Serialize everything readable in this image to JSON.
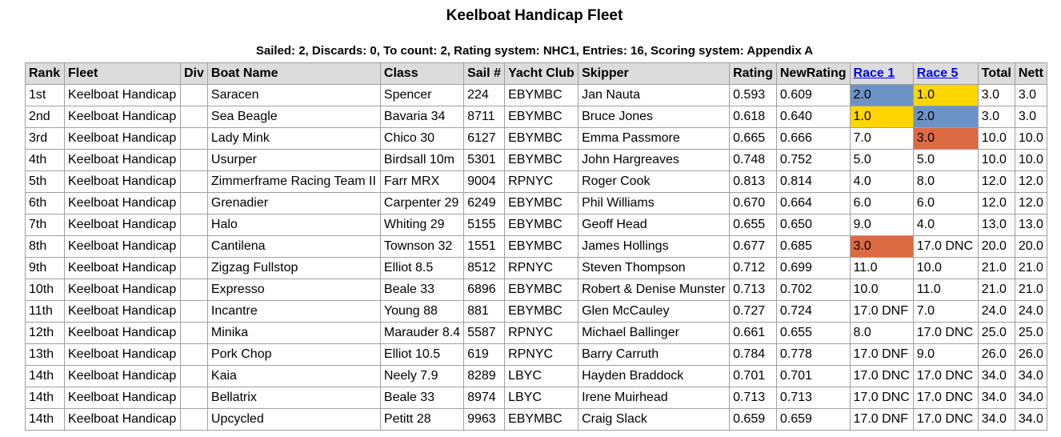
{
  "title": "Keelboat Handicap Fleet",
  "summary": "Sailed: 2, Discards: 0, To count: 2, Rating system: NHC1, Entries: 16, Scoring system: Appendix A",
  "colors": {
    "first": "#ffd700",
    "second": "#6b93c6",
    "third": "#dc6a43",
    "header_bg": "#dcdcdc"
  },
  "columns": [
    "Rank",
    "Fleet",
    "Div",
    "Boat Name",
    "Class",
    "Sail #",
    "Yacht Club",
    "Skipper",
    "Rating",
    "NewRating",
    "Race 1",
    "Race 5",
    "Total",
    "Nett"
  ],
  "linked_columns": [
    "Race 1",
    "Race 5"
  ],
  "rows": [
    {
      "rank": "1st",
      "fleet": "Keelboat Handicap",
      "div": "",
      "boat": "Saracen",
      "class": "Spencer",
      "sail": "224",
      "club": "EBYMBC",
      "skipper": "Jan Nauta",
      "rating": "0.593",
      "newrating": "0.609",
      "race1": "2.0",
      "race1_place": 2,
      "race5": "1.0",
      "race5_place": 1,
      "total": "3.0",
      "nett": "3.0"
    },
    {
      "rank": "2nd",
      "fleet": "Keelboat Handicap",
      "div": "",
      "boat": "Sea Beagle",
      "class": "Bavaria 34",
      "sail": "8711",
      "club": "EBYMBC",
      "skipper": "Bruce Jones",
      "rating": "0.618",
      "newrating": "0.640",
      "race1": "1.0",
      "race1_place": 1,
      "race5": "2.0",
      "race5_place": 2,
      "total": "3.0",
      "nett": "3.0"
    },
    {
      "rank": "3rd",
      "fleet": "Keelboat Handicap",
      "div": "",
      "boat": "Lady Mink",
      "class": "Chico 30",
      "sail": "6127",
      "club": "EBYMBC",
      "skipper": "Emma Passmore",
      "rating": "0.665",
      "newrating": "0.666",
      "race1": "7.0",
      "race5": "3.0",
      "race5_place": 3,
      "total": "10.0",
      "nett": "10.0"
    },
    {
      "rank": "4th",
      "fleet": "Keelboat Handicap",
      "div": "",
      "boat": "Usurper",
      "class": "Birdsall 10m",
      "sail": "5301",
      "club": "EBYMBC",
      "skipper": "John Hargreaves",
      "rating": "0.748",
      "newrating": "0.752",
      "race1": "5.0",
      "race5": "5.0",
      "total": "10.0",
      "nett": "10.0"
    },
    {
      "rank": "5th",
      "fleet": "Keelboat Handicap",
      "div": "",
      "boat": "Zimmerframe Racing Team II",
      "class": "Farr MRX",
      "sail": "9004",
      "club": "RPNYC",
      "skipper": "Roger Cook",
      "rating": "0.813",
      "newrating": "0.814",
      "race1": "4.0",
      "race5": "8.0",
      "total": "12.0",
      "nett": "12.0"
    },
    {
      "rank": "6th",
      "fleet": "Keelboat Handicap",
      "div": "",
      "boat": "Grenadier",
      "class": "Carpenter 29",
      "sail": "6249",
      "club": "EBYMBC",
      "skipper": "Phil Williams",
      "rating": "0.670",
      "newrating": "0.664",
      "race1": "6.0",
      "race5": "6.0",
      "total": "12.0",
      "nett": "12.0"
    },
    {
      "rank": "7th",
      "fleet": "Keelboat Handicap",
      "div": "",
      "boat": "Halo",
      "class": "Whiting 29",
      "sail": "5155",
      "club": "EBYMBC",
      "skipper": "Geoff Head",
      "rating": "0.655",
      "newrating": "0.650",
      "race1": "9.0",
      "race5": "4.0",
      "total": "13.0",
      "nett": "13.0"
    },
    {
      "rank": "8th",
      "fleet": "Keelboat Handicap",
      "div": "",
      "boat": "Cantilena",
      "class": "Townson 32",
      "sail": "1551",
      "club": "EBYMBC",
      "skipper": "James Hollings",
      "rating": "0.677",
      "newrating": "0.685",
      "race1": "3.0",
      "race1_place": 3,
      "race5": "17.0 DNC",
      "total": "20.0",
      "nett": "20.0"
    },
    {
      "rank": "9th",
      "fleet": "Keelboat Handicap",
      "div": "",
      "boat": "Zigzag Fullstop",
      "class": "Elliot 8.5",
      "sail": "8512",
      "club": "RPNYC",
      "skipper": "Steven Thompson",
      "rating": "0.712",
      "newrating": "0.699",
      "race1": "11.0",
      "race5": "10.0",
      "total": "21.0",
      "nett": "21.0"
    },
    {
      "rank": "10th",
      "fleet": "Keelboat Handicap",
      "div": "",
      "boat": "Expresso",
      "class": "Beale 33",
      "sail": "6896",
      "club": "EBYMBC",
      "skipper": "Robert & Denise Munster",
      "rating": "0.713",
      "newrating": "0.702",
      "race1": "10.0",
      "race5": "11.0",
      "total": "21.0",
      "nett": "21.0"
    },
    {
      "rank": "11th",
      "fleet": "Keelboat Handicap",
      "div": "",
      "boat": "Incantre",
      "class": "Young 88",
      "sail": "881",
      "club": "EBYMBC",
      "skipper": "Glen McCauley",
      "rating": "0.727",
      "newrating": "0.724",
      "race1": "17.0 DNF",
      "race5": "7.0",
      "total": "24.0",
      "nett": "24.0"
    },
    {
      "rank": "12th",
      "fleet": "Keelboat Handicap",
      "div": "",
      "boat": "Minika",
      "class": "Marauder 8.4",
      "sail": "5587",
      "club": "RPNYC",
      "skipper": "Michael Ballinger",
      "rating": "0.661",
      "newrating": "0.655",
      "race1": "8.0",
      "race5": "17.0 DNC",
      "total": "25.0",
      "nett": "25.0"
    },
    {
      "rank": "13th",
      "fleet": "Keelboat Handicap",
      "div": "",
      "boat": "Pork Chop",
      "class": "Elliot 10.5",
      "sail": "619",
      "club": "RPNYC",
      "skipper": "Barry Carruth",
      "rating": "0.784",
      "newrating": "0.778",
      "race1": "17.0 DNF",
      "race5": "9.0",
      "total": "26.0",
      "nett": "26.0"
    },
    {
      "rank": "14th",
      "fleet": "Keelboat Handicap",
      "div": "",
      "boat": "Kaia",
      "class": "Neely 7.9",
      "sail": "8289",
      "club": "LBYC",
      "skipper": "Hayden Braddock",
      "rating": "0.701",
      "newrating": "0.701",
      "race1": "17.0 DNC",
      "race5": "17.0 DNC",
      "total": "34.0",
      "nett": "34.0"
    },
    {
      "rank": "14th",
      "fleet": "Keelboat Handicap",
      "div": "",
      "boat": "Bellatrix",
      "class": "Beale 33",
      "sail": "8974",
      "club": "LBYC",
      "skipper": "Irene Muirhead",
      "rating": "0.713",
      "newrating": "0.713",
      "race1": "17.0 DNC",
      "race5": "17.0 DNC",
      "total": "34.0",
      "nett": "34.0"
    },
    {
      "rank": "14th",
      "fleet": "Keelboat Handicap",
      "div": "",
      "boat": "Upcycled",
      "class": "Petitt 28",
      "sail": "9963",
      "club": "EBYMBC",
      "skipper": "Craig Slack",
      "rating": "0.659",
      "newrating": "0.659",
      "race1": "17.0 DNF",
      "race5": "17.0 DNC",
      "total": "34.0",
      "nett": "34.0"
    }
  ]
}
